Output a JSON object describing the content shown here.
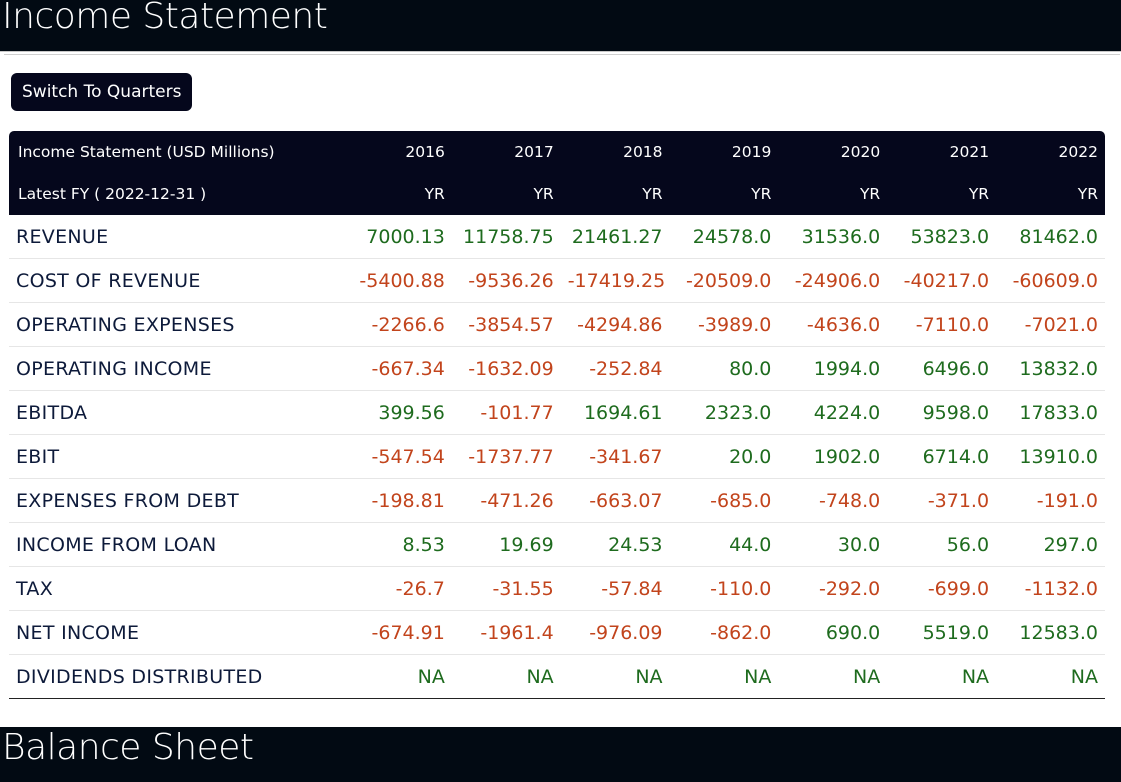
{
  "sections": {
    "income_title": "Income Statement",
    "balance_title": "Balance Sheet"
  },
  "toolbar": {
    "switch_label": "Switch To Quarters"
  },
  "colors": {
    "header_bg": "#020a13",
    "positive": "#1e6b1e",
    "negative": "#c2441c"
  },
  "table": {
    "header_title": "Income Statement (USD Millions)",
    "header_subtitle": "Latest FY ( 2022-12-31 )",
    "years": [
      "2016",
      "2017",
      "2018",
      "2019",
      "2020",
      "2021",
      "2022"
    ],
    "periods": [
      "YR",
      "YR",
      "YR",
      "YR",
      "YR",
      "YR",
      "YR"
    ],
    "rows": [
      {
        "label": "REVENUE",
        "values": [
          "7000.13",
          "11758.75",
          "21461.27",
          "24578.0",
          "31536.0",
          "53823.0",
          "81462.0"
        ]
      },
      {
        "label": "COST OF REVENUE",
        "values": [
          "-5400.88",
          "-9536.26",
          "-17419.25",
          "-20509.0",
          "-24906.0",
          "-40217.0",
          "-60609.0"
        ]
      },
      {
        "label": "OPERATING EXPENSES",
        "values": [
          "-2266.6",
          "-3854.57",
          "-4294.86",
          "-3989.0",
          "-4636.0",
          "-7110.0",
          "-7021.0"
        ]
      },
      {
        "label": "OPERATING INCOME",
        "values": [
          "-667.34",
          "-1632.09",
          "-252.84",
          "80.0",
          "1994.0",
          "6496.0",
          "13832.0"
        ]
      },
      {
        "label": "EBITDA",
        "values": [
          "399.56",
          "-101.77",
          "1694.61",
          "2323.0",
          "4224.0",
          "9598.0",
          "17833.0"
        ]
      },
      {
        "label": "EBIT",
        "values": [
          "-547.54",
          "-1737.77",
          "-341.67",
          "20.0",
          "1902.0",
          "6714.0",
          "13910.0"
        ]
      },
      {
        "label": "EXPENSES FROM DEBT",
        "values": [
          "-198.81",
          "-471.26",
          "-663.07",
          "-685.0",
          "-748.0",
          "-371.0",
          "-191.0"
        ]
      },
      {
        "label": "INCOME FROM LOAN",
        "values": [
          "8.53",
          "19.69",
          "24.53",
          "44.0",
          "30.0",
          "56.0",
          "297.0"
        ]
      },
      {
        "label": "TAX",
        "values": [
          "-26.7",
          "-31.55",
          "-57.84",
          "-110.0",
          "-292.0",
          "-699.0",
          "-1132.0"
        ]
      },
      {
        "label": "NET INCOME",
        "values": [
          "-674.91",
          "-1961.4",
          "-976.09",
          "-862.0",
          "690.0",
          "5519.0",
          "12583.0"
        ]
      },
      {
        "label": "DIVIDENDS DISTRIBUTED",
        "values": [
          "NA",
          "NA",
          "NA",
          "NA",
          "NA",
          "NA",
          "NA"
        ]
      }
    ]
  }
}
